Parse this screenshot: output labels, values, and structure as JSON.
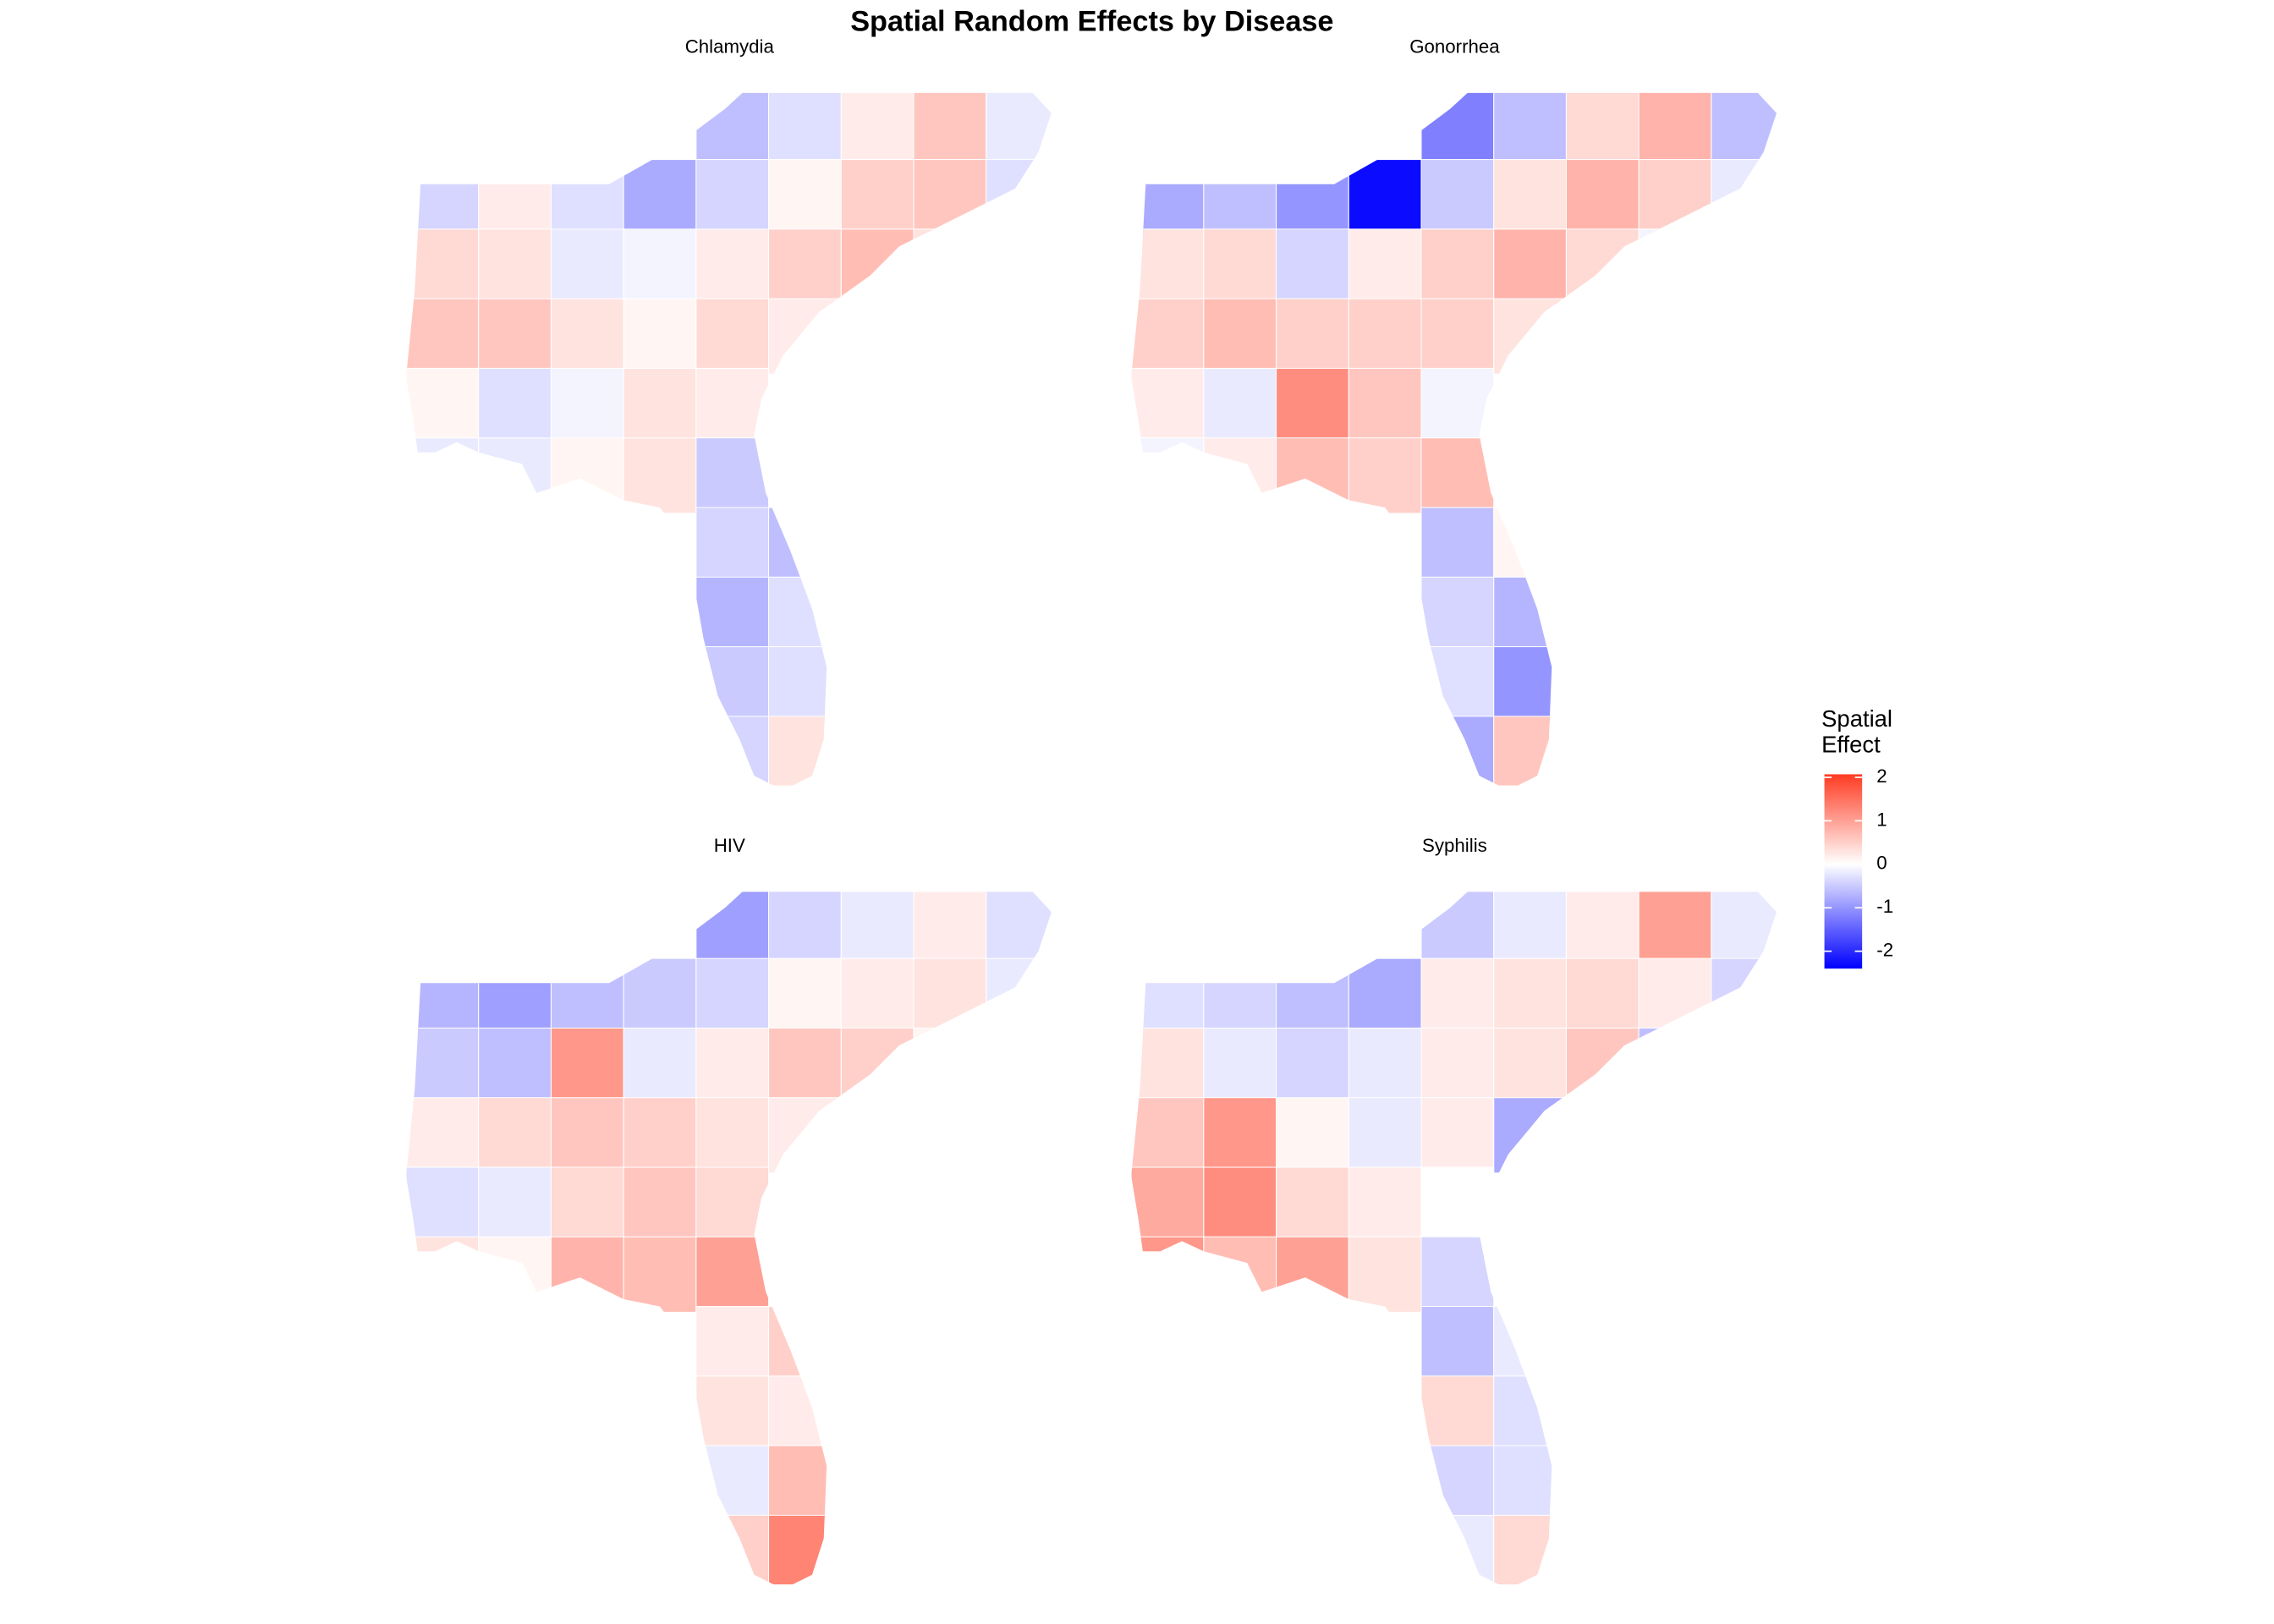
{
  "chart_data": {
    "type": "choropleth",
    "title": "Spatial Random Effects by Disease",
    "legend_title": "Spatial\nEffect",
    "limits": [
      -2.4,
      2.07
    ],
    "ticks": [
      -2,
      -1,
      0,
      1,
      2
    ],
    "low_color": "#0000ff",
    "mid_color": "#ffffff",
    "high_color": "#ff3b22",
    "panels": [
      {
        "title": "Chlamydia",
        "values": [
          [
            null,
            null,
            null,
            null,
            -0.6,
            -0.3,
            0.2,
            0.6,
            -0.2
          ],
          [
            -0.4,
            0.2,
            -0.3,
            -0.8,
            -0.4,
            0.1,
            0.5,
            0.6,
            -0.3
          ],
          [
            0.4,
            0.3,
            -0.2,
            -0.1,
            0.2,
            0.5,
            0.7,
            0.3,
            null
          ],
          [
            0.6,
            0.6,
            0.3,
            0.1,
            0.4,
            0.2,
            null,
            null,
            null
          ],
          [
            0.1,
            -0.3,
            -0.1,
            0.3,
            0.2,
            null,
            null,
            null,
            null
          ],
          [
            -0.2,
            -0.2,
            0.1,
            0.3,
            -0.5,
            null,
            null,
            null,
            null
          ],
          [
            null,
            null,
            null,
            null,
            -0.4,
            -0.6,
            null,
            null,
            null
          ],
          [
            null,
            null,
            null,
            null,
            -0.7,
            -0.3,
            null,
            null,
            null
          ],
          [
            null,
            null,
            null,
            null,
            -0.5,
            -0.3,
            null,
            null,
            null
          ],
          [
            null,
            null,
            null,
            null,
            -0.4,
            0.3,
            null,
            null,
            null
          ]
        ]
      },
      {
        "title": "Gonorrhea",
        "values": [
          [
            null,
            null,
            null,
            null,
            -1.2,
            -0.6,
            0.4,
            0.8,
            -0.6
          ],
          [
            -0.8,
            -0.6,
            -1.0,
            -2.3,
            -0.5,
            0.3,
            0.8,
            0.5,
            -0.2
          ],
          [
            0.3,
            0.4,
            -0.4,
            0.2,
            0.5,
            0.8,
            0.4,
            -0.1,
            null
          ],
          [
            0.5,
            0.7,
            0.5,
            0.5,
            0.5,
            0.3,
            null,
            null,
            null
          ],
          [
            0.2,
            -0.2,
            1.2,
            0.6,
            -0.1,
            null,
            null,
            null,
            null
          ],
          [
            -0.1,
            0.2,
            0.7,
            0.5,
            0.7,
            null,
            null,
            null,
            null
          ],
          [
            null,
            null,
            null,
            null,
            -0.6,
            0.1,
            null,
            null,
            null
          ],
          [
            null,
            null,
            null,
            null,
            -0.4,
            -0.7,
            null,
            null,
            null
          ],
          [
            null,
            null,
            null,
            null,
            -0.3,
            -1.0,
            null,
            null,
            null
          ],
          [
            null,
            null,
            null,
            null,
            -0.8,
            0.6,
            null,
            null,
            null
          ]
        ]
      },
      {
        "title": "HIV",
        "values": [
          [
            null,
            null,
            null,
            null,
            -0.9,
            -0.4,
            -0.2,
            0.2,
            -0.3
          ],
          [
            -0.7,
            -0.9,
            -0.6,
            -0.5,
            -0.4,
            0.1,
            0.2,
            0.3,
            -0.2
          ],
          [
            -0.5,
            -0.6,
            1.1,
            -0.2,
            0.2,
            0.6,
            0.5,
            0.1,
            null
          ],
          [
            0.2,
            0.4,
            0.6,
            0.5,
            0.3,
            0.2,
            null,
            null,
            null
          ],
          [
            -0.3,
            -0.2,
            0.4,
            0.6,
            0.4,
            null,
            null,
            null,
            null
          ],
          [
            0.3,
            0.1,
            0.8,
            0.7,
            1.0,
            null,
            null,
            null,
            null
          ],
          [
            null,
            null,
            null,
            null,
            0.2,
            0.5,
            null,
            null,
            null
          ],
          [
            null,
            null,
            null,
            null,
            0.3,
            0.2,
            null,
            null,
            null
          ],
          [
            null,
            null,
            null,
            null,
            -0.2,
            0.7,
            null,
            null,
            null
          ],
          [
            null,
            null,
            null,
            null,
            0.5,
            1.3,
            null,
            null,
            null
          ]
        ]
      },
      {
        "title": "Syphilis",
        "values": [
          [
            null,
            null,
            null,
            null,
            -0.5,
            -0.2,
            0.2,
            1.0,
            -0.2
          ],
          [
            -0.3,
            -0.4,
            -0.6,
            -0.8,
            0.2,
            0.3,
            0.4,
            0.2,
            -0.4
          ],
          [
            0.3,
            -0.2,
            -0.4,
            -0.2,
            0.2,
            0.3,
            0.6,
            -0.6,
            null
          ],
          [
            0.6,
            1.1,
            0.1,
            -0.2,
            0.2,
            -0.8,
            null,
            null,
            null
          ],
          [
            0.9,
            1.2,
            0.4,
            0.2,
            0.0,
            null,
            null,
            null,
            null
          ],
          [
            1.1,
            0.7,
            1.0,
            0.3,
            -0.4,
            null,
            null,
            null,
            null
          ],
          [
            null,
            null,
            null,
            null,
            -0.6,
            -0.2,
            null,
            null,
            null
          ],
          [
            null,
            null,
            null,
            null,
            0.4,
            -0.3,
            null,
            null,
            null
          ],
          [
            null,
            null,
            null,
            null,
            -0.4,
            -0.3,
            null,
            null,
            null
          ],
          [
            null,
            null,
            null,
            null,
            -0.2,
            0.4,
            null,
            null,
            null
          ]
        ]
      }
    ]
  }
}
